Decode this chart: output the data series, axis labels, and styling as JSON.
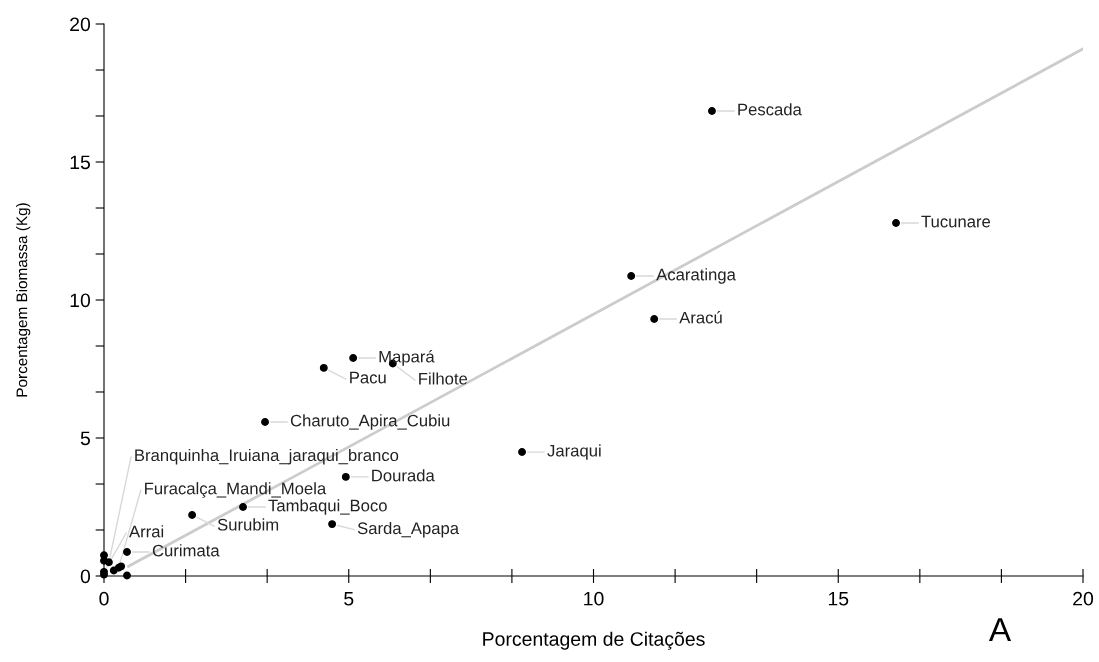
{
  "chart_data": {
    "type": "scatter",
    "xlabel": "Porcentagem de Citações",
    "ylabel": "Porcentagem Biomassa (Kg)",
    "annotations": [
      "A"
    ],
    "xlim": [
      0,
      20
    ],
    "ylim": [
      0,
      20
    ],
    "xticks": [
      0,
      {
        "value": 1.667,
        "label": null
      },
      {
        "value": 3.333,
        "label": null
      },
      5,
      {
        "value": 6.667,
        "label": null
      },
      {
        "value": 8.333,
        "label": null
      },
      10,
      {
        "value": 11.667,
        "label": null
      },
      {
        "value": 13.333,
        "label": null
      },
      15,
      {
        "value": 16.667,
        "label": null
      },
      {
        "value": 18.333,
        "label": null
      },
      20
    ],
    "yticks": [
      0,
      {
        "value": 1.667,
        "label": null
      },
      {
        "value": 3.333,
        "label": null
      },
      5,
      {
        "value": 6.667,
        "label": null
      },
      {
        "value": 8.333,
        "label": null
      },
      10,
      {
        "value": 11.667,
        "label": null
      },
      {
        "value": 13.333,
        "label": null
      },
      15,
      {
        "value": 16.667,
        "label": null
      },
      {
        "value": 18.333,
        "label": null
      },
      20
    ],
    "grid": false,
    "legend": false,
    "marker": "circle",
    "series": [
      {
        "type": "line",
        "marker": "none",
        "color": "#cccccc",
        "x": [
          0.5,
          20
        ],
        "values": [
          0.35,
          19.1
        ]
      },
      {
        "color": "#000000",
        "x": [
          12.42,
          16.18,
          10.77,
          11.24,
          5.09,
          5.9,
          4.49,
          3.29,
          8.54,
          4.94,
          2.84,
          1.8,
          4.66,
          0.47,
          0.1,
          0.0,
          0.3,
          0.0,
          0.0,
          0.0,
          0.2,
          0.35,
          0.47
        ],
        "values": [
          16.85,
          12.79,
          10.87,
          9.31,
          7.9,
          7.7,
          7.54,
          5.58,
          4.49,
          3.59,
          2.5,
          2.21,
          1.88,
          0.87,
          0.5,
          0.15,
          0.3,
          0.75,
          0.55,
          0.05,
          0.2,
          0.35,
          0.02
        ],
        "value_labels": [
          "Pescada",
          "Tucunare",
          "Acaratinga",
          "Aracú",
          "Mapará",
          "Filhote",
          "Pacu",
          "Charuto_Apira_Cubiu",
          "Jaraqui",
          "Dourada",
          "Tambaqui_Boco",
          "Surubim",
          "Sarda_Apapa",
          "Curimata",
          "Branquinha_Iruiana_jaraqui_branco",
          "Arrai",
          "Furacalça_Mandi_Moela",
          null,
          null,
          null,
          null,
          null,
          null
        ]
      }
    ]
  }
}
